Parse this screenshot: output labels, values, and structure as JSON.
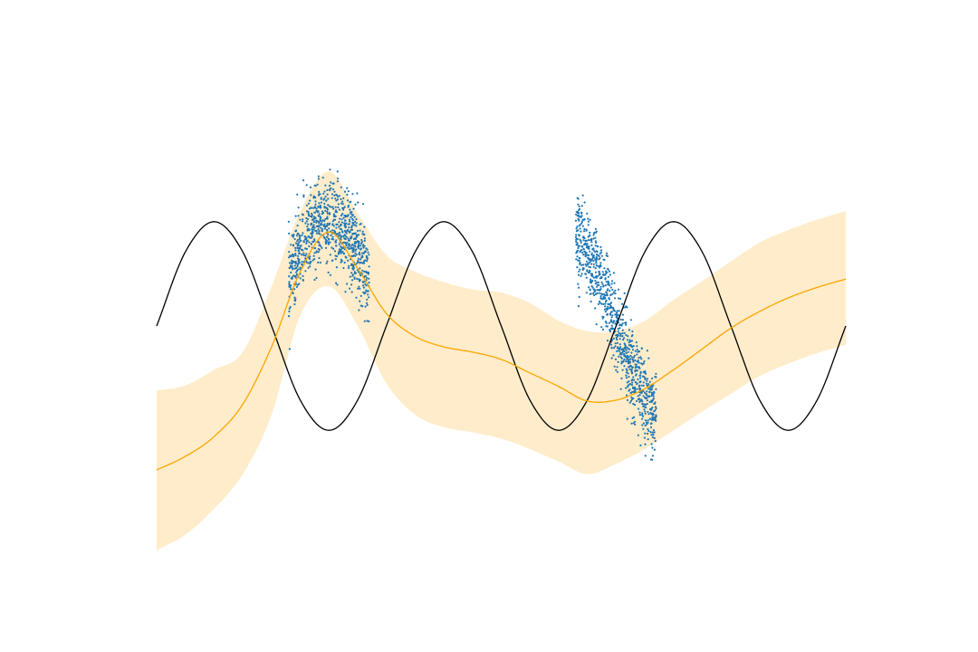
{
  "chart_data": {
    "type": "line",
    "axes_visible": false,
    "grid": false,
    "legend": "none",
    "xlim": [
      -3.0,
      3.0
    ],
    "ylim": [
      -2.5,
      2.5
    ],
    "colors": {
      "true_function": "#000000",
      "mean": "#ffa500",
      "band_fill": "#ffecca",
      "points": "#1f77b4"
    },
    "clusters": [
      {
        "center": -1.5,
        "halfwidth": 0.35,
        "count": 900
      },
      {
        "center": 1.0,
        "halfwidth": 0.35,
        "count": 900
      }
    ],
    "series": [
      {
        "kind": "true_function",
        "x": [
          -3.0,
          -2.75,
          -2.5,
          -2.25,
          -2.0,
          -1.75,
          -1.5,
          -1.25,
          -1.0,
          -0.75,
          -0.5,
          -0.25,
          0.0,
          0.25,
          0.5,
          0.75,
          1.0,
          1.25,
          1.5,
          1.75,
          2.0,
          2.25,
          2.5,
          2.75,
          3.0
        ],
        "y": [
          0.0,
          0.71,
          1.0,
          0.71,
          0.0,
          -0.71,
          -1.0,
          -0.71,
          0.0,
          0.71,
          1.0,
          0.71,
          0.0,
          -0.71,
          -1.0,
          -0.71,
          0.0,
          0.71,
          1.0,
          0.71,
          0.0,
          -0.71,
          -1.0,
          -0.71,
          0.0
        ]
      },
      {
        "kind": "predictive_mean",
        "x": [
          -3.0,
          -2.75,
          -2.5,
          -2.25,
          -2.0,
          -1.75,
          -1.5,
          -1.25,
          -1.0,
          -0.75,
          -0.5,
          -0.25,
          0.0,
          0.25,
          0.5,
          0.75,
          1.0,
          1.25,
          1.5,
          1.75,
          2.0,
          2.25,
          2.5,
          2.75,
          3.0
        ],
        "y": [
          -1.38,
          -1.25,
          -1.06,
          -0.75,
          -0.2,
          0.52,
          0.9,
          0.55,
          0.12,
          -0.1,
          -0.2,
          -0.25,
          -0.32,
          -0.45,
          -0.58,
          -0.72,
          -0.71,
          -0.6,
          -0.42,
          -0.22,
          -0.02,
          0.14,
          0.27,
          0.37,
          0.45
        ]
      },
      {
        "kind": "uncertainty_band",
        "x": [
          -3.0,
          -2.75,
          -2.5,
          -2.25,
          -2.0,
          -1.75,
          -1.5,
          -1.25,
          -1.0,
          -0.75,
          -0.5,
          -0.25,
          0.0,
          0.25,
          0.5,
          0.75,
          1.0,
          1.25,
          1.5,
          1.75,
          2.0,
          2.25,
          2.5,
          2.75,
          3.0
        ],
        "lower": [
          -2.15,
          -2.0,
          -1.75,
          -1.42,
          -0.85,
          0.1,
          0.38,
          0.0,
          -0.55,
          -0.85,
          -0.97,
          -1.02,
          -1.08,
          -1.18,
          -1.3,
          -1.42,
          -1.32,
          -1.18,
          -1.0,
          -0.82,
          -0.65,
          -0.48,
          -0.36,
          -0.26,
          -0.18
        ],
        "upper": [
          -0.62,
          -0.57,
          -0.42,
          -0.25,
          0.38,
          1.1,
          1.48,
          1.08,
          0.68,
          0.52,
          0.42,
          0.35,
          0.32,
          0.22,
          0.05,
          -0.05,
          -0.05,
          0.05,
          0.25,
          0.43,
          0.62,
          0.8,
          0.92,
          1.02,
          1.1
        ]
      }
    ]
  }
}
